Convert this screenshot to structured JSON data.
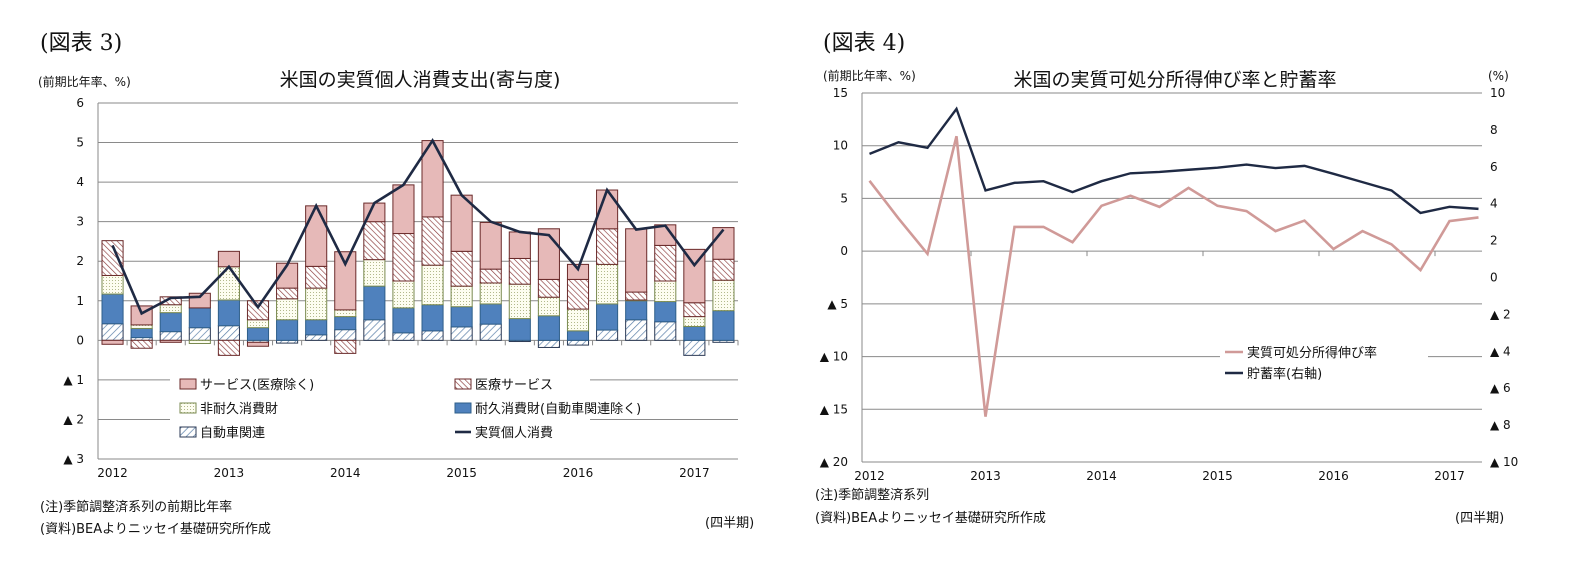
{
  "figures": [
    {
      "label": "(図表 3)"
    },
    {
      "label": "(図表 4)"
    }
  ],
  "chart_data": [
    {
      "type": "bar",
      "stacked": true,
      "title": "米国の実質個人消費支出(寄与度)",
      "ylabel": "(前期比年率、%)",
      "xlabel": "(四半期)",
      "ylim": [
        -3,
        6
      ],
      "yticks": [
        6,
        5,
        4,
        3,
        2,
        1,
        0,
        -1,
        -2,
        -3
      ],
      "ytick_labels": [
        "6",
        "5",
        "4",
        "3",
        "2",
        "1",
        "0",
        "▲ 1",
        "▲ 2",
        "▲ 3"
      ],
      "year_labels": [
        "2012",
        "2013",
        "2014",
        "2015",
        "2016",
        "2017"
      ],
      "categories": [
        "2012Q1",
        "2012Q2",
        "2012Q3",
        "2012Q4",
        "2013Q1",
        "2013Q2",
        "2013Q3",
        "2013Q4",
        "2014Q1",
        "2014Q2",
        "2014Q3",
        "2014Q4",
        "2015Q1",
        "2015Q2",
        "2015Q3",
        "2015Q4",
        "2016Q1",
        "2016Q2",
        "2016Q3",
        "2016Q4",
        "2017Q1",
        "2017Q2"
      ],
      "grid": true,
      "legend_position": "bottom-inside",
      "series": [
        {
          "name": "自動車関連",
          "kind": "bar",
          "pattern": "diagonal-hatch",
          "color": "#5a7fa8",
          "values": [
            0.42,
            0.07,
            0.22,
            0.32,
            0.37,
            -0.05,
            -0.07,
            0.14,
            0.27,
            0.52,
            0.19,
            0.24,
            0.34,
            0.41,
            -0.03,
            -0.18,
            -0.12,
            0.26,
            0.52,
            0.47,
            -0.38,
            -0.05
          ]
        },
        {
          "name": "耐久消費財(自動車関連除く)",
          "kind": "bar",
          "color": "#4f81bd",
          "values": [
            0.75,
            0.23,
            0.48,
            0.5,
            0.65,
            0.32,
            0.52,
            0.38,
            0.33,
            0.85,
            0.63,
            0.66,
            0.51,
            0.51,
            0.55,
            0.62,
            0.24,
            0.66,
            0.48,
            0.51,
            0.35,
            0.75
          ]
        },
        {
          "name": "非耐久消費財",
          "kind": "bar",
          "pattern": "dots",
          "color": "#fbfbe4",
          "values": [
            0.47,
            0.09,
            0.2,
            -0.08,
            0.84,
            0.2,
            0.53,
            0.8,
            0.17,
            0.67,
            0.68,
            1.0,
            0.52,
            0.53,
            0.87,
            0.47,
            0.55,
            1.0,
            0.02,
            0.52,
            0.25,
            0.77
          ]
        },
        {
          "name": "医療サービス",
          "kind": "bar",
          "pattern": "reverse-hatch",
          "color": "#8b3a3a",
          "values": [
            0.88,
            -0.2,
            0.2,
            0,
            -0.38,
            0.48,
            0.27,
            0.55,
            -0.33,
            0.96,
            1.2,
            1.22,
            0.88,
            0.35,
            0.65,
            0.45,
            0.75,
            0.9,
            0.2,
            0.9,
            0.35,
            0.53
          ]
        },
        {
          "name": "サービス(医療除く)",
          "kind": "bar",
          "color": "#e6b9b8",
          "values": [
            -0.1,
            0.48,
            -0.05,
            0.37,
            0.39,
            -0.1,
            0.63,
            1.53,
            1.47,
            0.47,
            1.23,
            1.93,
            1.42,
            1.18,
            0.67,
            1.28,
            0.38,
            0.98,
            1.6,
            0.52,
            1.35,
            0.8
          ]
        },
        {
          "name": "実質個人消費",
          "kind": "line",
          "color": "#1f2a44",
          "values": [
            2.4,
            0.68,
            1.07,
            1.1,
            1.86,
            0.84,
            1.9,
            3.4,
            1.93,
            3.47,
            3.93,
            5.05,
            3.67,
            3.0,
            2.74,
            2.66,
            1.8,
            3.8,
            2.8,
            2.9,
            1.9,
            2.8
          ]
        }
      ],
      "notes": [
        "(注)季節調整済系列の前期比年率",
        "(資料)BEAよりニッセイ基礎研究所作成"
      ]
    },
    {
      "type": "line",
      "title": "米国の実質可処分所得伸び率と貯蓄率",
      "ylabel": "(前期比年率、%)",
      "y2label": "(%)",
      "xlabel": "(四半期)",
      "ylim": [
        -20,
        15
      ],
      "y2lim": [
        -10,
        10
      ],
      "yticks": [
        15,
        10,
        5,
        0,
        -5,
        -10,
        -15,
        -20
      ],
      "ytick_labels": [
        "15",
        "10",
        "5",
        "0",
        "▲ 5",
        "▲ 10",
        "▲ 15",
        "▲ 20"
      ],
      "y2ticks": [
        10,
        8,
        6,
        4,
        2,
        0,
        -2,
        -4,
        -6,
        -8,
        -10
      ],
      "y2tick_labels": [
        "10",
        "8",
        "6",
        "4",
        "2",
        "0",
        "▲ 2",
        "▲ 4",
        "▲ 6",
        "▲ 8",
        "▲ 10"
      ],
      "year_labels": [
        "2012",
        "2013",
        "2014",
        "2015",
        "2016",
        "2017"
      ],
      "categories": [
        "2012Q1",
        "2012Q2",
        "2012Q3",
        "2012Q4",
        "2013Q1",
        "2013Q2",
        "2013Q3",
        "2013Q4",
        "2014Q1",
        "2014Q2",
        "2014Q3",
        "2014Q4",
        "2015Q1",
        "2015Q2",
        "2015Q3",
        "2015Q4",
        "2016Q1",
        "2016Q2",
        "2016Q3",
        "2016Q4",
        "2017Q1",
        "2017Q2"
      ],
      "grid": true,
      "legend_position": "center-right",
      "series": [
        {
          "name": "実質可処分所得伸び率",
          "axis": "left",
          "color": "#d09a98",
          "values": [
            6.67,
            3.1,
            -0.25,
            10.9,
            -15.7,
            2.3,
            2.3,
            0.85,
            4.3,
            5.25,
            4.2,
            6.0,
            4.3,
            3.8,
            1.9,
            2.9,
            0.2,
            1.9,
            0.65,
            -1.8,
            2.85,
            3.2
          ]
        },
        {
          "name": "貯蓄率(右軸)",
          "axis": "right",
          "color": "#1f2a44",
          "values": [
            6.7,
            7.33,
            7.03,
            9.14,
            4.72,
            5.13,
            5.22,
            4.63,
            5.22,
            5.65,
            5.72,
            5.84,
            5.95,
            6.12,
            5.93,
            6.05,
            5.62,
            5.17,
            4.72,
            3.5,
            3.83,
            3.72
          ]
        }
      ],
      "notes": [
        "(注)季節調整済系列",
        "(資料)BEAよりニッセイ基礎研究所作成"
      ]
    }
  ]
}
